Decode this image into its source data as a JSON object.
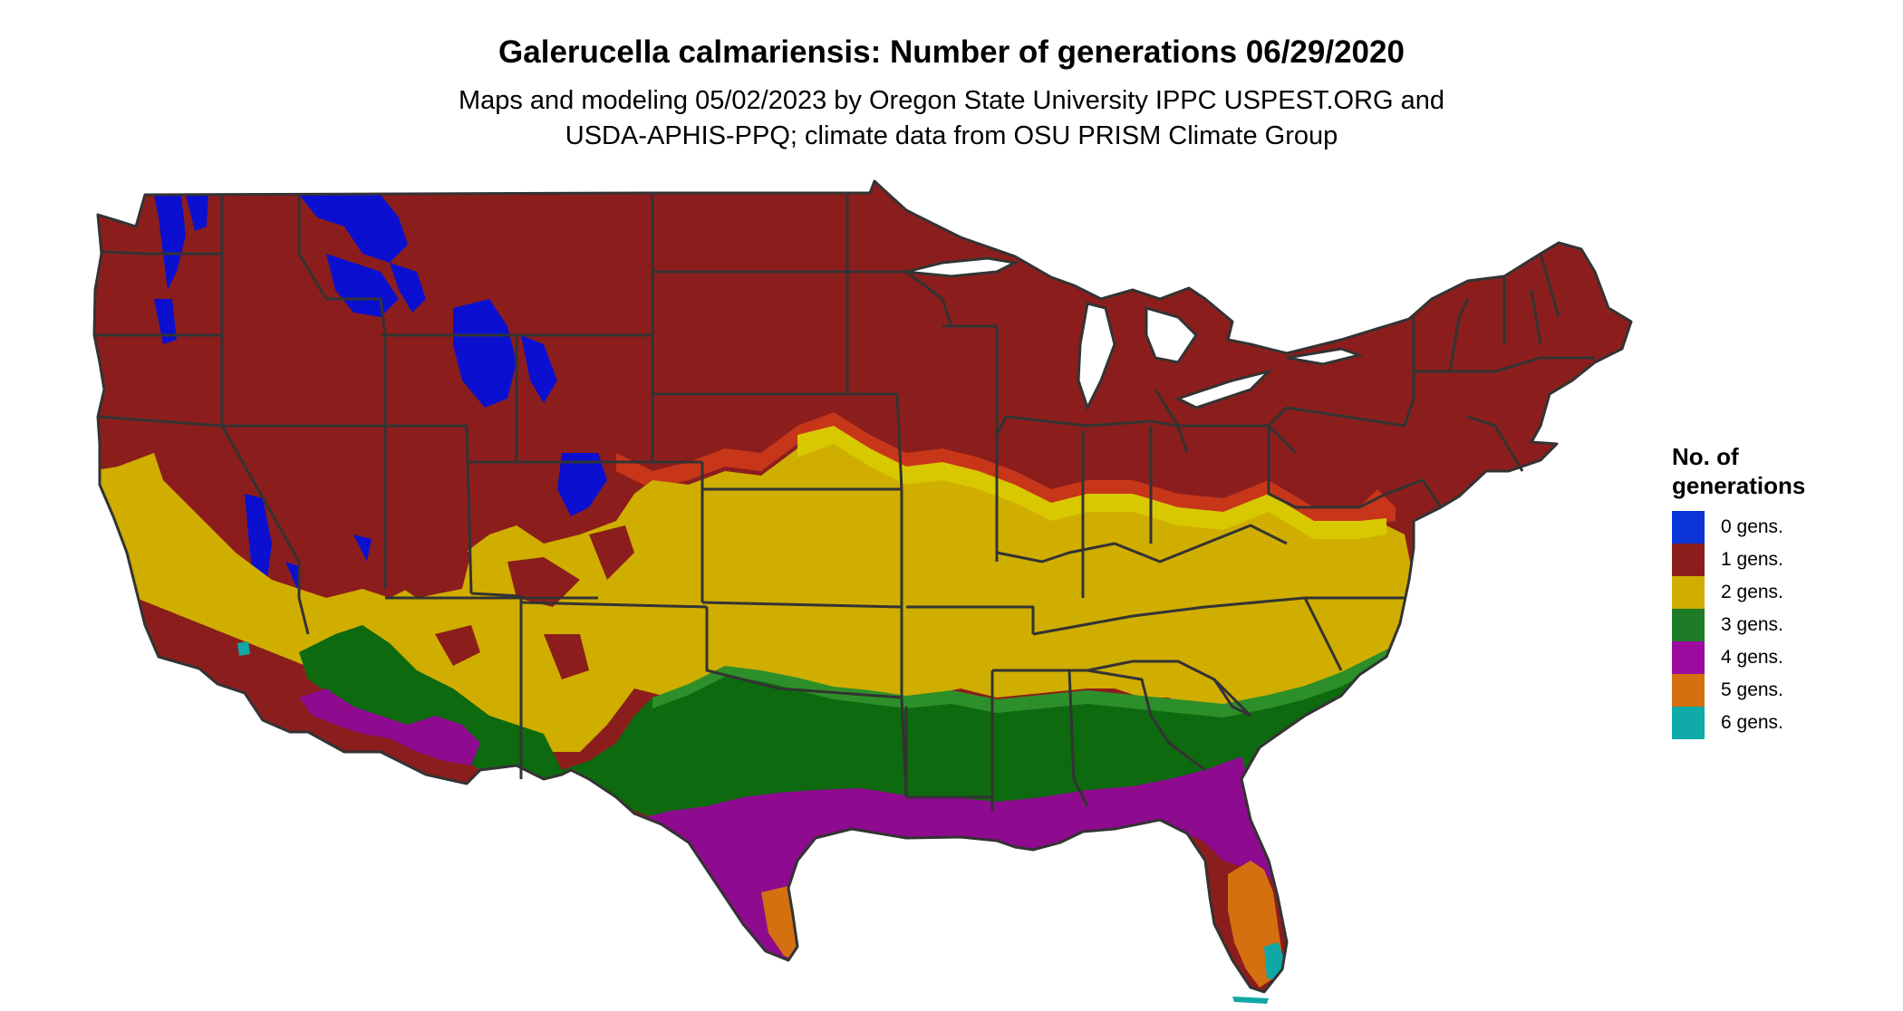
{
  "title": "Galerucella calmariensis: Number of generations 06/29/2020",
  "subtitle_lines": [
    "Maps and modeling 05/02/2023 by Oregon State University IPPC USPEST.ORG and",
    "USDA-APHIS-PPQ; climate data from OSU PRISM Climate Group"
  ],
  "legend": {
    "title_lines": [
      "No. of",
      "generations"
    ],
    "items": [
      {
        "label": "0 gens.",
        "color": "#0b35d6"
      },
      {
        "label": "1 gens.",
        "color": "#8b1e1c"
      },
      {
        "label": "2 gens.",
        "color": "#cfae00"
      },
      {
        "label": "3 gens.",
        "color": "#1e7b26"
      },
      {
        "label": "4 gens.",
        "color": "#9c0a9e"
      },
      {
        "label": "5 gens.",
        "color": "#d4700f"
      },
      {
        "label": "6 gens.",
        "color": "#10aaa8"
      }
    ]
  },
  "map_colors": {
    "zero": "#0b10d0",
    "one": "#8b1e1c",
    "one_edge": "#c8361a",
    "two": "#cfae00",
    "two_light": "#d8c800",
    "three": "#0d6a0f",
    "three_light": "#2d8f2a",
    "four": "#8e0a8f",
    "five": "#d4700f",
    "six": "#10a8a4",
    "borders": "#333333"
  }
}
